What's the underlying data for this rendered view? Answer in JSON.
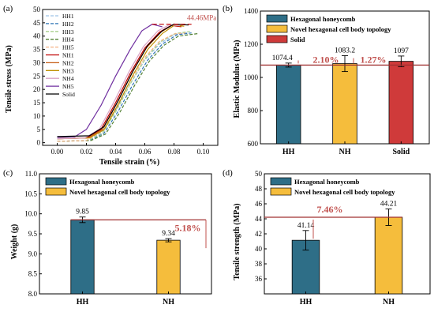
{
  "panel_labels": [
    "(a)",
    "(b)",
    "(c)",
    "(d)"
  ],
  "chart_data": [
    {
      "type": "line",
      "panel": "(a)",
      "xlabel": "Tensile strain (%)",
      "ylabel": "Tensile stress (MPa)",
      "xlim": [
        -0.01,
        0.11
      ],
      "ylim": [
        -1,
        50
      ],
      "xticks": [
        "0.00",
        "0.02",
        "0.04",
        "0.06",
        "0.08",
        "0.10"
      ],
      "yticks": [
        "0",
        "5",
        "10",
        "15",
        "20",
        "25",
        "30",
        "35",
        "40",
        "45",
        "50"
      ],
      "annotation": "44.46MPa",
      "annotation_value": 44.46,
      "series": [
        {
          "name": "HH1",
          "color": "#9dc3e6",
          "dash": "4,2",
          "x": [
            0.0,
            0.02,
            0.03,
            0.04,
            0.05,
            0.06,
            0.07,
            0.08,
            0.09
          ],
          "y": [
            0.5,
            0.8,
            3.5,
            12,
            22,
            31,
            37,
            40.5,
            41.5
          ]
        },
        {
          "name": "HH2",
          "color": "#2e75b6",
          "dash": "4,2",
          "x": [
            0.0,
            0.022,
            0.032,
            0.042,
            0.052,
            0.062,
            0.072,
            0.082,
            0.092
          ],
          "y": [
            0.5,
            0.8,
            3.5,
            12,
            22,
            31,
            37,
            40.5,
            41.2
          ]
        },
        {
          "name": "HH3",
          "color": "#a9d18e",
          "dash": "4,2",
          "x": [
            0.0,
            0.021,
            0.031,
            0.041,
            0.051,
            0.061,
            0.071,
            0.081,
            0.091
          ],
          "y": [
            0.5,
            0.8,
            3.5,
            12.5,
            23,
            32,
            38,
            41,
            41.8
          ]
        },
        {
          "name": "HH4",
          "color": "#548235",
          "dash": "4,2",
          "x": [
            0.0,
            0.023,
            0.033,
            0.043,
            0.053,
            0.063,
            0.073,
            0.083,
            0.097
          ],
          "y": [
            0.5,
            0.8,
            3.2,
            11.5,
            21.5,
            30.5,
            36.5,
            40,
            41
          ]
        },
        {
          "name": "HH5",
          "color": "#f4b183",
          "dash": "4,2",
          "x": [
            0.0,
            0.02,
            0.03,
            0.04,
            0.05,
            0.06,
            0.07,
            0.08,
            0.088
          ],
          "y": [
            0.5,
            0.8,
            4,
            13,
            23,
            32,
            38,
            40.8,
            41.2
          ]
        },
        {
          "name": "NH1",
          "color": "#c00000",
          "dash": "",
          "x": [
            0.0,
            0.02,
            0.03,
            0.04,
            0.05,
            0.06,
            0.07,
            0.078,
            0.085
          ],
          "y": [
            1.5,
            1.8,
            5,
            15,
            26,
            35.5,
            41.5,
            44,
            43.5
          ]
        },
        {
          "name": "NH2",
          "color": "#c55a11",
          "dash": "",
          "x": [
            0.0,
            0.021,
            0.031,
            0.041,
            0.051,
            0.061,
            0.071,
            0.079,
            0.086
          ],
          "y": [
            1.5,
            1.8,
            5,
            15,
            26,
            35.5,
            41.5,
            44.2,
            43.8
          ]
        },
        {
          "name": "NH3",
          "color": "#bf9000",
          "dash": "",
          "x": [
            0.0,
            0.022,
            0.032,
            0.042,
            0.052,
            0.062,
            0.072,
            0.08,
            0.087
          ],
          "y": [
            1.5,
            1.8,
            4.8,
            14.5,
            25.5,
            35,
            41,
            44,
            43.7
          ]
        },
        {
          "name": "NH4",
          "color": "#d9a3c6",
          "dash": "",
          "x": [
            0.0,
            0.019,
            0.029,
            0.039,
            0.049,
            0.059,
            0.069,
            0.077,
            0.084
          ],
          "y": [
            1.5,
            1.8,
            5.2,
            15.5,
            26.5,
            36,
            42,
            44.3,
            43.9
          ]
        },
        {
          "name": "NH5",
          "color": "#7030a0",
          "dash": "",
          "x": [
            0.0,
            0.012,
            0.02,
            0.03,
            0.04,
            0.05,
            0.058,
            0.065,
            0.072
          ],
          "y": [
            2,
            2.2,
            5,
            14,
            25,
            35,
            42,
            44.46,
            43.5
          ]
        },
        {
          "name": "Solid",
          "color": "#000000",
          "dash": "",
          "x": [
            0.0,
            0.022,
            0.032,
            0.042,
            0.052,
            0.062,
            0.072,
            0.08,
            0.09
          ],
          "y": [
            2.3,
            2.6,
            6,
            16,
            27,
            36.5,
            42,
            44.5,
            44.2
          ]
        }
      ]
    },
    {
      "type": "bar",
      "panel": "(b)",
      "categories": [
        "HH",
        "NH",
        "Solid"
      ],
      "values": [
        1074.4,
        1083.2,
        1097
      ],
      "value_labels": [
        "1074.4",
        "1083.2",
        "1097"
      ],
      "errors": [
        12,
        48,
        32
      ],
      "colors": [
        "#2e6e87",
        "#f5bd3c",
        "#cf3a3a"
      ],
      "legend": [
        "Hexagonal honeycomb",
        "Novel hexagonal cell body topology",
        "Solid"
      ],
      "ylabel": "Elastic Modulus (MPa)",
      "ylim": [
        600,
        1400
      ],
      "yticks": [
        "600",
        "800",
        "1000",
        "1200",
        "1400"
      ],
      "percent_labels": [
        "2.10%",
        "1.27%"
      ]
    },
    {
      "type": "bar",
      "panel": "(c)",
      "categories": [
        "HH",
        "NH"
      ],
      "values": [
        9.85,
        9.34
      ],
      "value_labels": [
        "9.85",
        "9.34"
      ],
      "errors": [
        0.07,
        0.04
      ],
      "colors": [
        "#2e6e87",
        "#f5bd3c"
      ],
      "legend": [
        "Hexagonal honeycomb",
        "Novel hexagonal cell body topology"
      ],
      "ylabel": "Weight (g)",
      "ylim": [
        8.0,
        11.0
      ],
      "yticks": [
        "8.0",
        "8.5",
        "9.0",
        "9.5",
        "10.0",
        "10.5",
        "11.0"
      ],
      "percent_label": "5.18%"
    },
    {
      "type": "bar",
      "panel": "(d)",
      "categories": [
        "HH",
        "NH"
      ],
      "values": [
        41.14,
        44.21
      ],
      "value_labels": [
        "41.14",
        "44.21"
      ],
      "errors": [
        1.3,
        1.1
      ],
      "colors": [
        "#2e6e87",
        "#f5bd3c"
      ],
      "legend": [
        "Hexagonal honeycomb",
        "Novel hexagonal cell body topology"
      ],
      "ylabel": "Tensile strength (MPa)",
      "ylim": [
        34,
        50
      ],
      "yticks": [
        "36",
        "38",
        "40",
        "42",
        "44",
        "46",
        "48",
        "50"
      ],
      "percent_label": "7.46%"
    }
  ]
}
